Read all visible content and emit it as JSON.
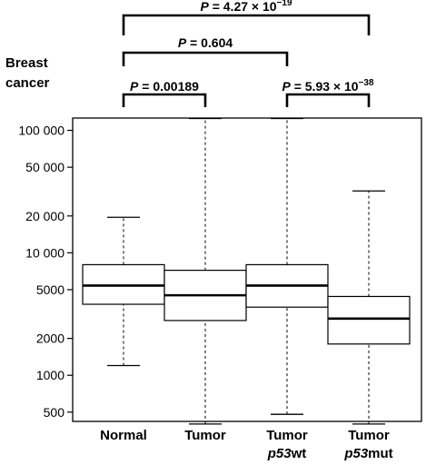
{
  "chart_data": {
    "type": "box",
    "title_lines": [
      "Breast",
      "cancer"
    ],
    "y_scale": "log",
    "ylim": [
      420,
      150000
    ],
    "y_ticks": [
      {
        "value": 500,
        "label": "500"
      },
      {
        "value": 1000,
        "label": "1000"
      },
      {
        "value": 2000,
        "label": "2000"
      },
      {
        "value": 5000,
        "label": "5000"
      },
      {
        "value": 10000,
        "label": "10 000"
      },
      {
        "value": 20000,
        "label": "20 000"
      },
      {
        "value": 50000,
        "label": "50 000"
      },
      {
        "value": 100000,
        "label": "100 000"
      }
    ],
    "categories": [
      {
        "line1": "Normal",
        "line2_italic": "",
        "line2_rest": ""
      },
      {
        "line1": "Tumor",
        "line2_italic": "",
        "line2_rest": ""
      },
      {
        "line1": "Tumor",
        "line2_italic": "p53",
        "line2_rest": "wt"
      },
      {
        "line1": "Tumor",
        "line2_italic": "p53",
        "line2_rest": "mut"
      }
    ],
    "boxes": [
      {
        "whisker_low": 1200,
        "q1": 3800,
        "median": 5400,
        "q3": 8000,
        "whisker_high": 19500
      },
      {
        "whisker_low": 400,
        "q1": 2800,
        "median": 4500,
        "q3": 7200,
        "whisker_high": 125000
      },
      {
        "whisker_low": 480,
        "q1": 3600,
        "median": 5400,
        "q3": 8000,
        "whisker_high": 125000
      },
      {
        "whisker_low": 400,
        "q1": 1800,
        "median": 2900,
        "q3": 4400,
        "whisker_high": 32000
      }
    ],
    "comparisons": [
      {
        "from": 0,
        "to": 1,
        "p_mantissa": "0.00189",
        "p_exponent": ""
      },
      {
        "from": 2,
        "to": 3,
        "p_mantissa": "5.93 × 10",
        "p_exponent": "−38"
      },
      {
        "from": 0,
        "to": 2,
        "p_mantissa": "0.604",
        "p_exponent": ""
      },
      {
        "from": 0,
        "to": 3,
        "p_mantissa": "4.27 × 10",
        "p_exponent": "−19"
      }
    ],
    "p_label": "P",
    "p_equals": " = "
  }
}
